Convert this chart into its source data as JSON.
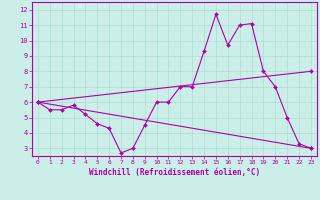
{
  "xlabel": "Windchill (Refroidissement éolien,°C)",
  "xlim": [
    -0.5,
    23.5
  ],
  "ylim": [
    2.5,
    12.5
  ],
  "yticks": [
    3,
    4,
    5,
    6,
    7,
    8,
    9,
    10,
    11,
    12
  ],
  "xticks": [
    0,
    1,
    2,
    3,
    4,
    5,
    6,
    7,
    8,
    9,
    10,
    11,
    12,
    13,
    14,
    15,
    16,
    17,
    18,
    19,
    20,
    21,
    22,
    23
  ],
  "bg_color": "#cceee8",
  "line_color": "#aa00aa",
  "grid_color": "#aaddcc",
  "line1_x": [
    0,
    1,
    2,
    3,
    4,
    5,
    6,
    7,
    8,
    9,
    10,
    11,
    12,
    13,
    14,
    15,
    16,
    17,
    18,
    19,
    20,
    21,
    22,
    23
  ],
  "line1_y": [
    6.0,
    5.5,
    5.5,
    5.8,
    5.2,
    4.6,
    4.3,
    2.7,
    3.0,
    4.5,
    6.0,
    6.0,
    7.0,
    7.0,
    9.3,
    11.7,
    9.7,
    11.0,
    11.1,
    8.0,
    7.0,
    5.0,
    3.3,
    3.0
  ],
  "line2_x": [
    0,
    23
  ],
  "line2_y": [
    6.0,
    3.0
  ],
  "line3_x": [
    0,
    23
  ],
  "line3_y": [
    6.0,
    8.0
  ]
}
